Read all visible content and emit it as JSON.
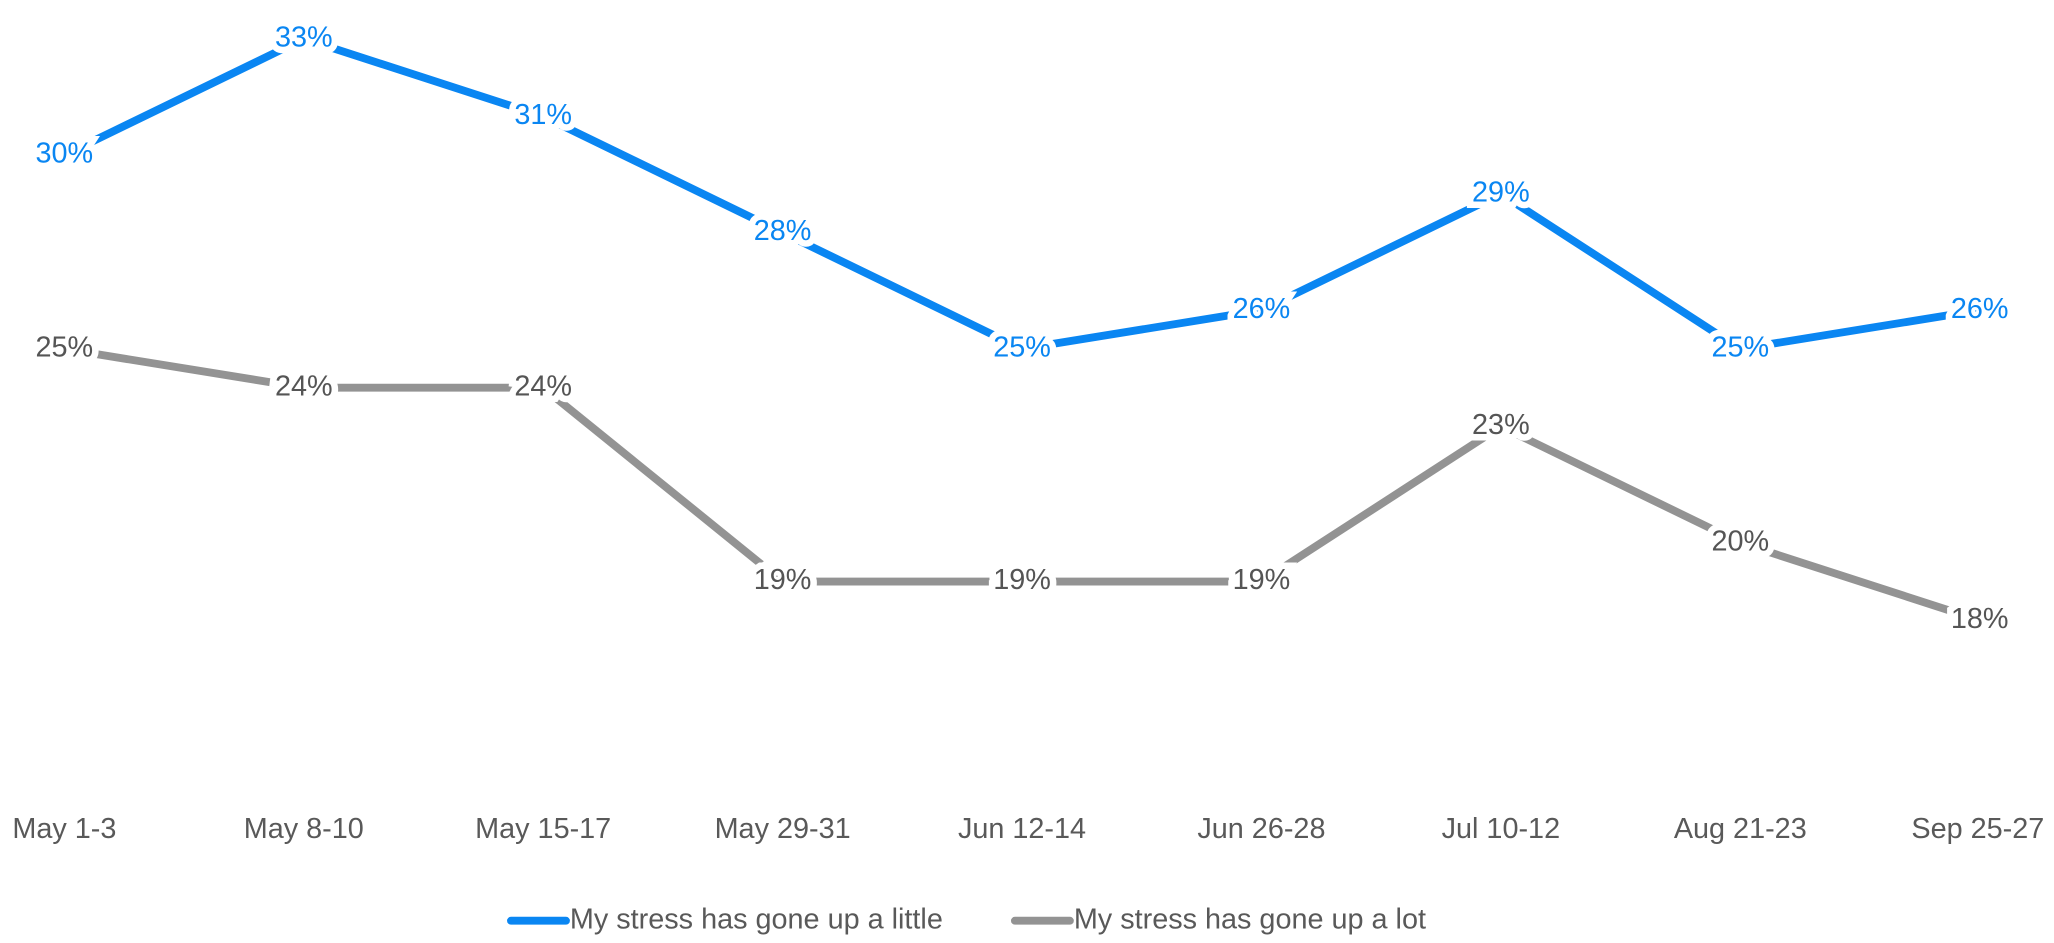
{
  "chart_data": {
    "type": "line",
    "categories": [
      "May 1-3",
      "May 8-10",
      "May 15-17",
      "May 29-31",
      "Jun 12-14",
      "Jun 26-28",
      "Jul 10-12",
      "Aug 21-23",
      "Sep 25-27"
    ],
    "series": [
      {
        "name": "My stress has gone up a little",
        "color": "#0a86f2",
        "label_color": "#0a86f2",
        "values": [
          30,
          33,
          31,
          28,
          25,
          26,
          29,
          25,
          26
        ],
        "value_labels": [
          "30%",
          "33%",
          "31%",
          "28%",
          "25%",
          "26%",
          "29%",
          "25%",
          "26%"
        ]
      },
      {
        "name": "My stress has gone up a lot",
        "color": "#939393",
        "label_color": "#555555",
        "values": [
          25,
          24,
          24,
          19,
          19,
          19,
          23,
          20,
          18
        ],
        "value_labels": [
          "25%",
          "24%",
          "24%",
          "19%",
          "19%",
          "19%",
          "23%",
          "20%",
          "18%"
        ]
      }
    ],
    "ylim": [
      14,
      34
    ],
    "legend": "bottom"
  }
}
